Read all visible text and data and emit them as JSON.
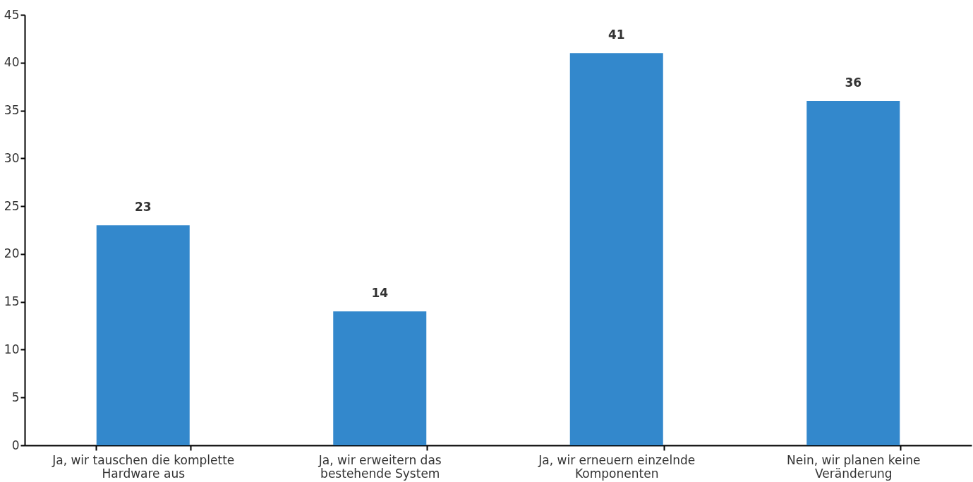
{
  "chart_data": {
    "type": "bar",
    "categories": [
      "Ja, wir tauschen die komplette\nHardware aus",
      "Ja, wir erweitern das\nbestehende System",
      "Ja, wir erneuern einzelnde\nKomponenten",
      "Nein, wir planen keine\nVeränderung"
    ],
    "values": [
      23,
      14,
      41,
      36
    ],
    "color": "#3388cc",
    "ylim": [
      0,
      45
    ],
    "yticks": [
      0,
      5,
      10,
      15,
      20,
      25,
      30,
      35,
      40,
      45
    ],
    "grid": false,
    "data_labels": true
  }
}
